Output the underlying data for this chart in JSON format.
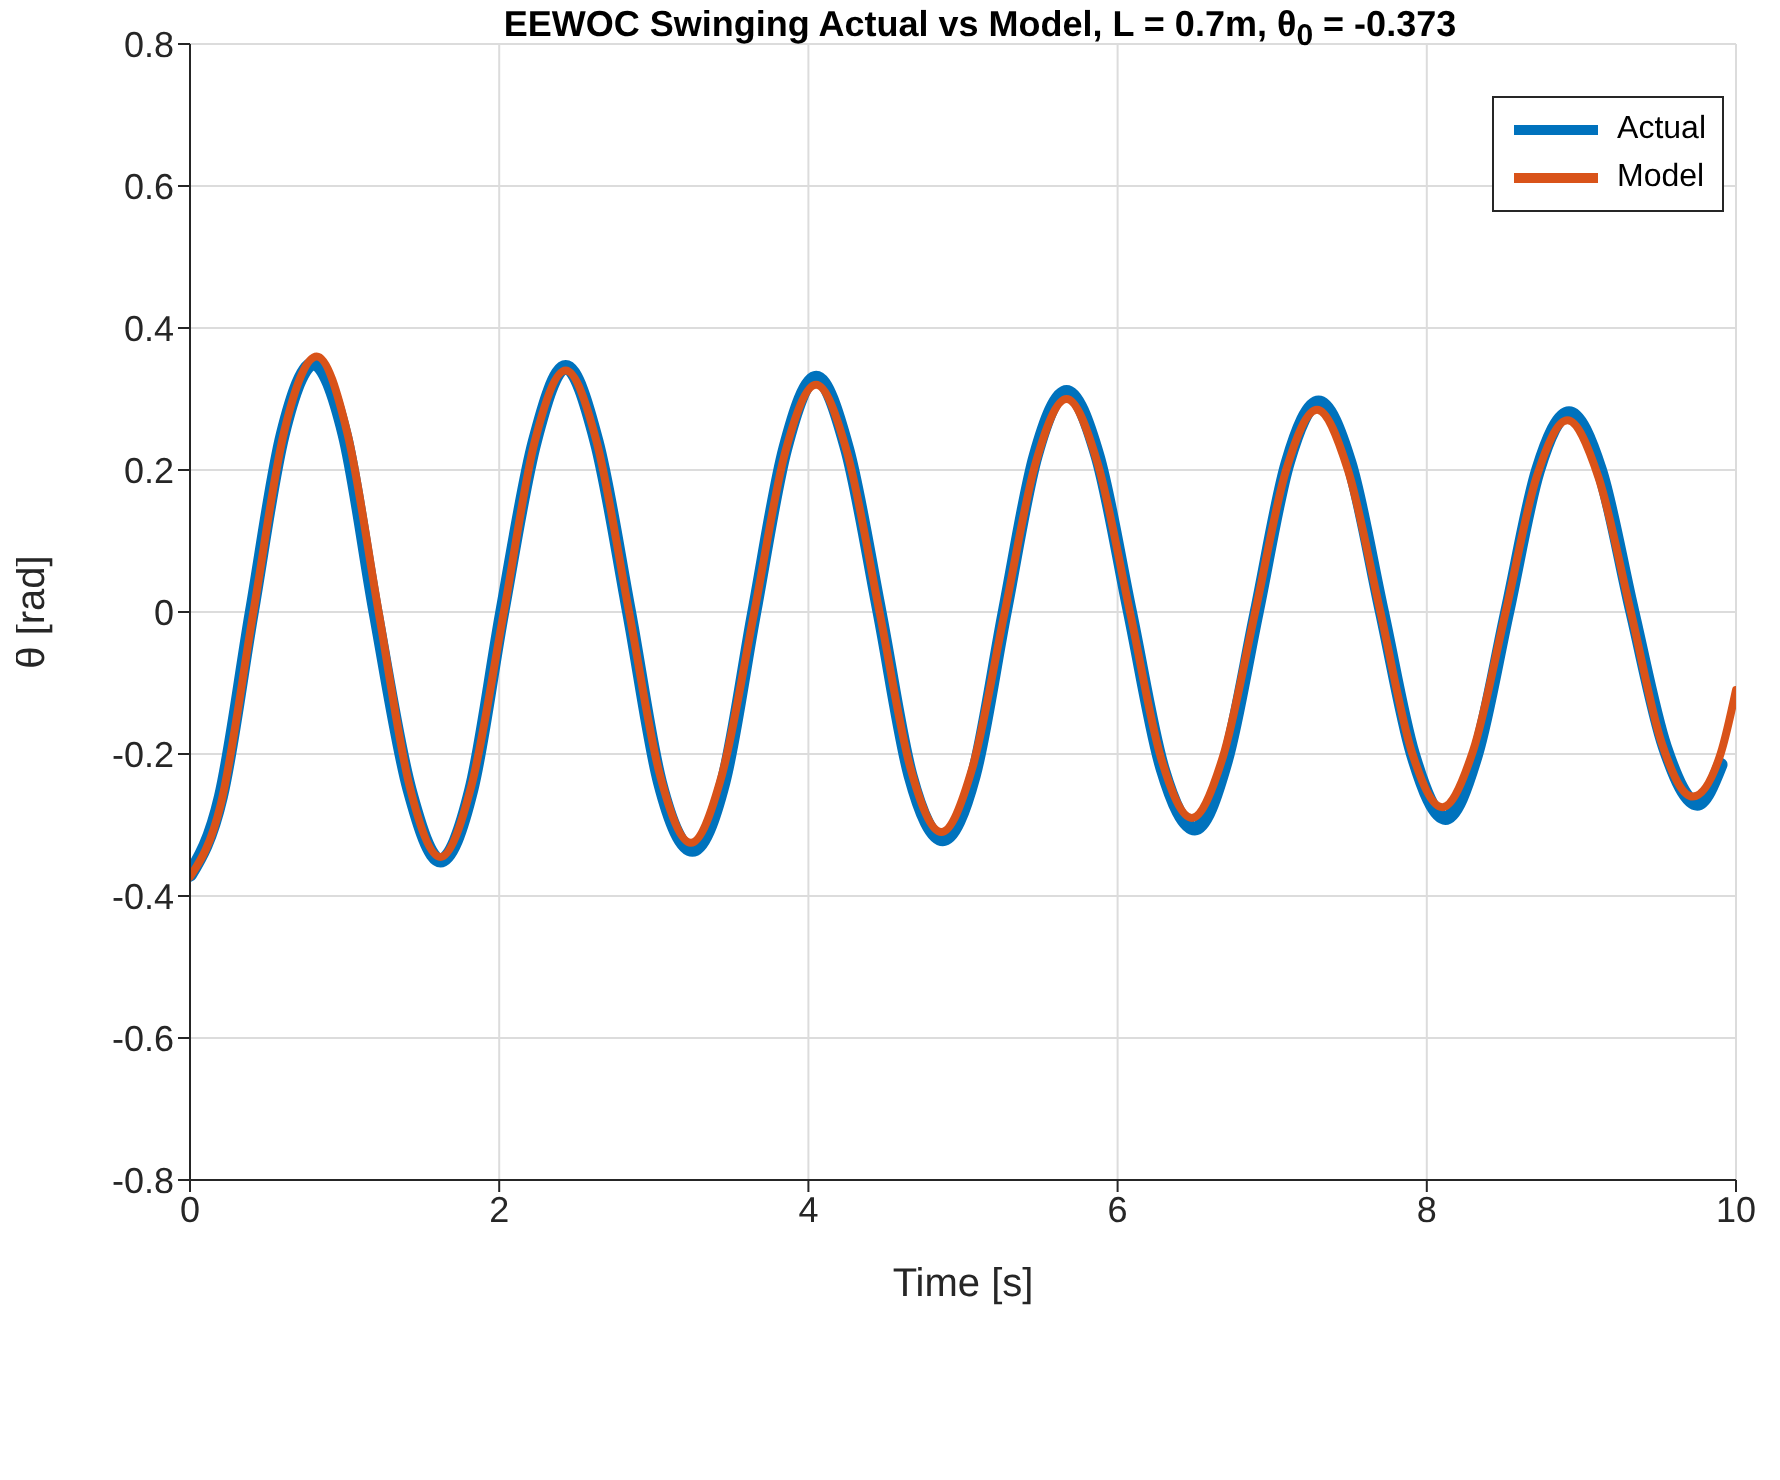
{
  "chart_data": {
    "type": "line",
    "title": "EEWOC Swinging Actual vs Model, L = 0.7m, θ$_{0}$ = -0.373",
    "xlabel": "Time [s]",
    "ylabel": "θ [rad]",
    "xlim": [
      0,
      10
    ],
    "xticks": [
      0,
      2,
      4,
      6,
      8,
      10
    ],
    "ylim": [
      -0.8,
      0.8
    ],
    "yticks": [
      -0.8,
      -0.6,
      -0.4,
      -0.2,
      0,
      0.2,
      0.4,
      0.6,
      0.8
    ],
    "grid": true,
    "legend": "top right",
    "marker": "none",
    "line_style": "solid",
    "series": [
      {
        "name": "Actual",
        "color": "#0072bd",
        "x": [
          0,
          0.2,
          0.4,
          0.6,
          0.8,
          1.0,
          1.2,
          1.42,
          1.62,
          1.82,
          2.02,
          2.23,
          2.43,
          2.63,
          2.84,
          3.04,
          3.25,
          3.45,
          3.65,
          3.85,
          4.05,
          4.25,
          4.46,
          4.66,
          4.87,
          5.07,
          5.27,
          5.47,
          5.67,
          5.87,
          6.08,
          6.29,
          6.5,
          6.7,
          6.9,
          7.1,
          7.3,
          7.5,
          7.71,
          7.91,
          8.12,
          8.32,
          8.52,
          8.72,
          8.92,
          9.12,
          9.33,
          9.54,
          9.75,
          9.9
        ],
        "values": [
          -0.37,
          -0.26,
          0.0,
          0.25,
          0.35,
          0.25,
          0.0,
          -0.25,
          -0.35,
          -0.25,
          0.0,
          0.24,
          0.345,
          0.24,
          0.0,
          -0.24,
          -0.335,
          -0.24,
          0.0,
          0.23,
          0.33,
          0.23,
          0.0,
          -0.23,
          -0.32,
          -0.23,
          0.0,
          0.22,
          0.31,
          0.22,
          0.0,
          -0.22,
          -0.305,
          -0.21,
          0.0,
          0.21,
          0.295,
          0.21,
          0.0,
          -0.2,
          -0.29,
          -0.2,
          0.0,
          0.2,
          0.28,
          0.2,
          0.0,
          -0.19,
          -0.27,
          -0.215
        ]
      },
      {
        "name": "Model",
        "color": "#d95319",
        "x": [
          0,
          0.2,
          0.41,
          0.61,
          0.82,
          1.02,
          1.22,
          1.42,
          1.62,
          1.82,
          2.03,
          2.23,
          2.43,
          2.63,
          2.84,
          3.04,
          3.24,
          3.44,
          3.65,
          3.85,
          4.05,
          4.25,
          4.46,
          4.66,
          4.86,
          5.06,
          5.27,
          5.47,
          5.67,
          5.87,
          6.08,
          6.28,
          6.48,
          6.68,
          6.89,
          7.09,
          7.29,
          7.49,
          7.7,
          7.9,
          8.1,
          8.3,
          8.51,
          8.71,
          8.91,
          9.11,
          9.32,
          9.52,
          9.72,
          9.9,
          10
        ],
        "values": [
          -0.373,
          -0.27,
          0.0,
          0.255,
          0.36,
          0.25,
          0.0,
          -0.245,
          -0.345,
          -0.245,
          0.0,
          0.24,
          0.34,
          0.24,
          0.0,
          -0.23,
          -0.325,
          -0.23,
          0.0,
          0.225,
          0.32,
          0.225,
          0.0,
          -0.22,
          -0.31,
          -0.22,
          0.0,
          0.21,
          0.3,
          0.21,
          0.0,
          -0.205,
          -0.29,
          -0.205,
          0.0,
          0.2,
          0.285,
          0.2,
          0.0,
          -0.195,
          -0.275,
          -0.195,
          0.0,
          0.19,
          0.27,
          0.19,
          0.0,
          -0.185,
          -0.26,
          -0.2,
          -0.11
        ]
      }
    ]
  }
}
